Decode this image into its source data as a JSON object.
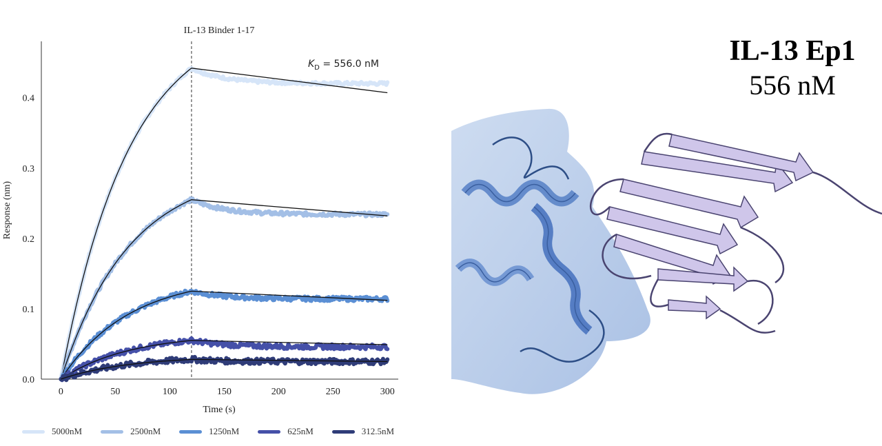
{
  "chart_data": {
    "type": "line",
    "title": "IL-13 Binder 1-17",
    "xlabel": "Time (s)",
    "ylabel": "Response (nm)",
    "xlim": [
      -18,
      310
    ],
    "ylim": [
      0,
      0.48
    ],
    "xticks": [
      0,
      50,
      100,
      150,
      200,
      250,
      300
    ],
    "yticks": [
      0.0,
      0.1,
      0.2,
      0.3,
      0.4
    ],
    "association_end": 120,
    "annotation": "K_D = 556.0 nM",
    "legend_position": "bottom",
    "grid": false,
    "series": [
      {
        "name": "5000nM",
        "color": "#d6e5f8",
        "peak": 0.442,
        "end": 0.42,
        "fit_end": 0.407
      },
      {
        "name": "2500nM",
        "color": "#a3bfe6",
        "peak": 0.255,
        "end": 0.234,
        "fit_end": 0.232
      },
      {
        "name": "1250nM",
        "color": "#5b8fd4",
        "peak": 0.125,
        "end": 0.114,
        "fit_end": 0.112
      },
      {
        "name": "625nM",
        "color": "#4550a8",
        "peak": 0.055,
        "end": 0.046,
        "fit_end": 0.049
      },
      {
        "name": "312.5nM",
        "color": "#2f3c78",
        "peak": 0.028,
        "end": 0.025,
        "fit_end": 0.025
      }
    ]
  },
  "structure": {
    "title": "IL-13 Ep1",
    "subtitle": "556 nM"
  }
}
